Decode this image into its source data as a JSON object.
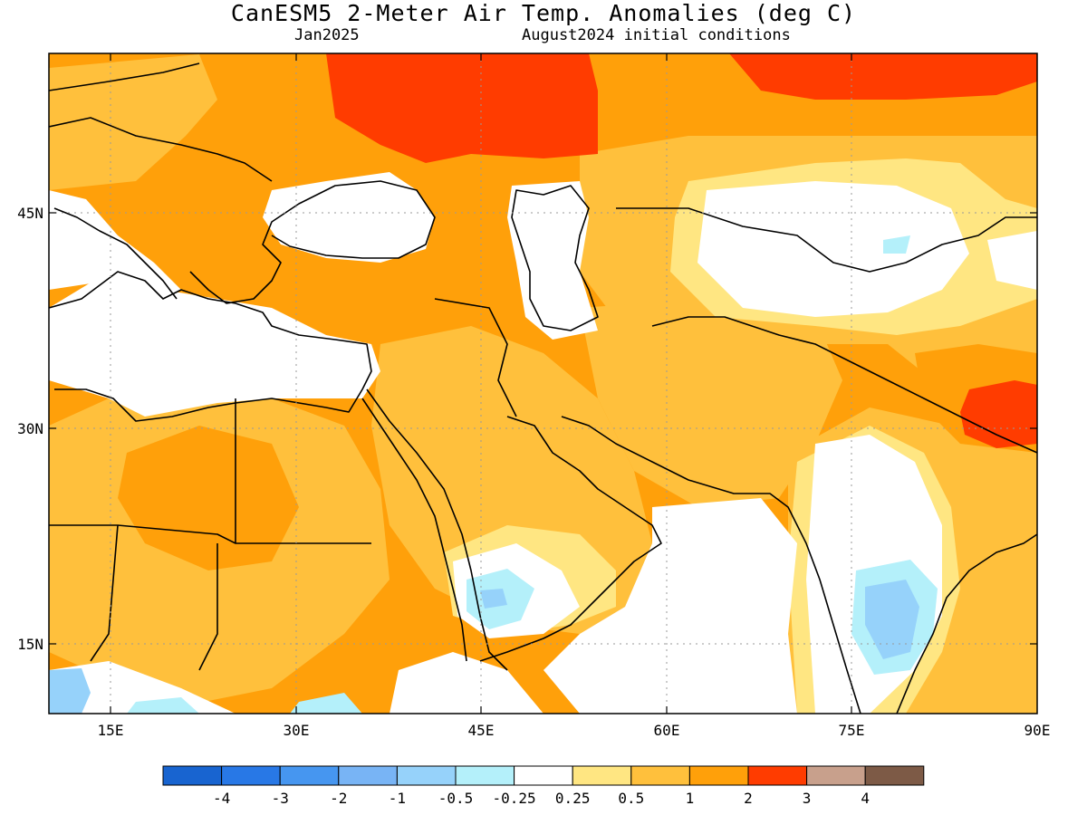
{
  "title": "CanESM5 2-Meter Air Temp. Anomalies (deg C)",
  "subtitle_left": "Jan2025",
  "subtitle_right": "August2024 initial conditions",
  "map": {
    "lat_ticks": [
      "45N",
      "30N",
      "15N"
    ],
    "lon_ticks": [
      "15E",
      "30E",
      "45E",
      "60E",
      "75E",
      "90E"
    ]
  },
  "colorbar": {
    "colors": [
      "#1864d0",
      "#2878e6",
      "#4696f0",
      "#78b4f5",
      "#96d2fa",
      "#b4f0fa",
      "#ffffff",
      "#ffe682",
      "#ffc03c",
      "#ffa00a",
      "#ff3c00",
      "#c8a08c",
      "#7d5a46"
    ],
    "labels": [
      "-4",
      "-3",
      "-2",
      "-1",
      "-0.5",
      "-0.25",
      "0.25",
      "0.5",
      "1",
      "2",
      "3",
      "4"
    ]
  }
}
